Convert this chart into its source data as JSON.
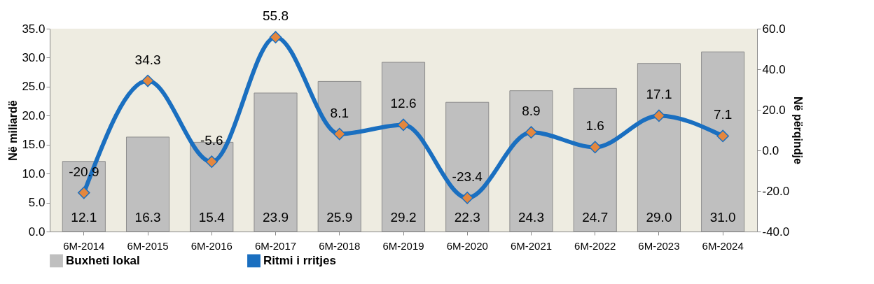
{
  "chart_data": {
    "type": "bar",
    "ylabel": "Në miliardë",
    "y2label": "Në përqindje",
    "categories": [
      "6M-2014",
      "6M-2015",
      "6M-2016",
      "6M-2017",
      "6M-2018",
      "6M-2019",
      "6M-2020",
      "6M-2021",
      "6M-2022",
      "6M-2023",
      "6M-2024"
    ],
    "series": [
      {
        "name": "Buxheti lokal",
        "color": "#bfbfbf",
        "values": [
          12.1,
          16.3,
          15.4,
          23.9,
          25.9,
          29.2,
          22.3,
          24.3,
          24.7,
          29.0,
          31.0
        ],
        "value_labels": [
          "12.1",
          "16.3",
          "15.4",
          "23.9",
          "25.9",
          "29.2",
          "22.3",
          "24.3",
          "24.7",
          "29.0",
          "31.0"
        ]
      },
      {
        "name": "Ritmi i rritjes",
        "type": "line",
        "axis": "y2",
        "color": "#1a6fc0",
        "marker": "diamond",
        "values": [
          -20.9,
          34.3,
          -5.6,
          55.8,
          8.1,
          12.6,
          -23.4,
          8.9,
          1.6,
          17.1,
          7.1
        ],
        "value_labels": [
          "-20.9",
          "34.3",
          "-5.6",
          "55.8",
          "8.1",
          "12.6",
          "-23.4",
          "8.9",
          "1.6",
          "17.1",
          "7.1"
        ]
      }
    ],
    "ylim": [
      0,
      35
    ],
    "yticks": [
      {
        "value": 0,
        "label": "0.0"
      },
      {
        "value": 5,
        "label": "5.0"
      },
      {
        "value": 10,
        "label": "10.0"
      },
      {
        "value": 15,
        "label": "15.0"
      },
      {
        "value": 20,
        "label": "20.0"
      },
      {
        "value": 25,
        "label": "25.0"
      },
      {
        "value": 30,
        "label": "30.0"
      },
      {
        "value": 35,
        "label": "35.0"
      }
    ],
    "y2lim": [
      -40,
      60
    ],
    "y2ticks": [
      {
        "value": -40,
        "label": "-40.0"
      },
      {
        "value": -20,
        "label": "-20.0"
      },
      {
        "value": 0,
        "label": "0.0"
      },
      {
        "value": 20,
        "label": "20.0"
      },
      {
        "value": 40,
        "label": "40.0"
      },
      {
        "value": 60,
        "label": "60.0"
      }
    ],
    "grid": false,
    "legend": "bottom"
  }
}
